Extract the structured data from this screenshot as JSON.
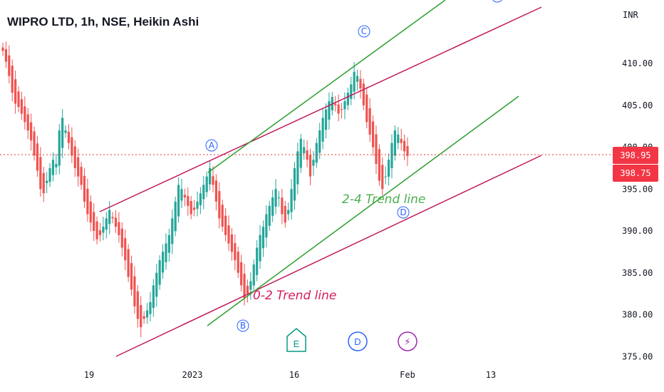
{
  "title": "WIPRO LTD, 1h, NSE, Heikin Ashi",
  "currency": "INR",
  "colors": {
    "up": "#26a69a",
    "down": "#ef5350",
    "channel_red": "#c2185b",
    "channel_green": "#2e9e2e",
    "wave_label": "#2962ff",
    "price_line": "#e53935",
    "annot_green": "#4caf50",
    "annot_red": "#d81b60",
    "event_green": "#089981",
    "event_blue": "#2962ff",
    "event_purple": "#9c27b0"
  },
  "annotations": {
    "trend_24": "2-4 Trend line",
    "trend_02": "0-2 Trend line"
  },
  "wave_labels": [
    "A",
    "B",
    "C",
    "D"
  ],
  "events": [
    {
      "label": "E",
      "icon": "earnings-icon"
    },
    {
      "label": "D",
      "icon": "dividend-icon"
    },
    {
      "label": "⚡",
      "icon": "flash-icon"
    }
  ],
  "price_tags": {
    "last": "398.95",
    "second": "398.75"
  },
  "chart_data": {
    "type": "candlestick",
    "style": "Heikin Ashi",
    "symbol": "WIPRO LTD",
    "interval": "1h",
    "exchange": "NSE",
    "y_ticks": [
      "410.00",
      "405.00",
      "400.00",
      "395.00",
      "390.00",
      "385.00",
      "380.00",
      "375.00"
    ],
    "x_ticks": [
      "19",
      "2023",
      "16",
      "Feb",
      "13"
    ],
    "ylim": [
      375,
      413
    ],
    "last_price": 398.95,
    "grid": false,
    "series": [
      {
        "name": "close",
        "values": [
          411.5,
          410.2,
          408.5,
          406.5,
          405.2,
          404.8,
          404.0,
          403.0,
          402.0,
          400.8,
          399.0,
          397.2,
          395.0,
          394.5,
          396.0,
          397.5,
          398.5,
          398.0,
          402.0,
          403.5,
          402.0,
          400.5,
          399.0,
          397.5,
          396.5,
          395.5,
          393.5,
          392.0,
          391.0,
          390.0,
          389.0,
          389.5,
          390.5,
          391.5,
          392.5,
          391.5,
          390.5,
          389.5,
          388.0,
          386.5,
          384.5,
          383.0,
          381.0,
          379.5,
          378.5,
          379.5,
          380.5,
          381.5,
          383.5,
          385.0,
          386.5,
          387.5,
          388.5,
          389.5,
          391.5,
          393.5,
          395.5,
          395.0,
          394.0,
          393.0,
          392.0,
          392.5,
          393.5,
          394.5,
          395.5,
          396.5,
          397.5,
          395.5,
          393.5,
          391.5,
          390.5,
          389.5,
          388.5,
          387.5,
          386.5,
          385.0,
          383.5,
          382.0,
          382.5,
          384.0,
          386.0,
          388.0,
          389.5,
          390.5,
          392.0,
          393.0,
          394.0,
          395.0,
          394.0,
          392.0,
          391.0,
          392.5,
          395.0,
          397.5,
          399.5,
          401.0,
          400.0,
          398.5,
          396.5,
          398.5,
          400.5,
          402.0,
          403.5,
          404.5,
          405.5,
          406.0,
          405.0,
          404.0,
          404.5,
          405.5,
          406.5,
          407.5,
          409.0,
          408.5,
          407.0,
          405.0,
          403.0,
          401.5,
          400.0,
          398.0,
          396.0,
          395.0,
          396.5,
          398.5,
          400.5,
          402.0,
          401.5,
          400.5,
          399.5,
          398.95
        ]
      }
    ]
  }
}
